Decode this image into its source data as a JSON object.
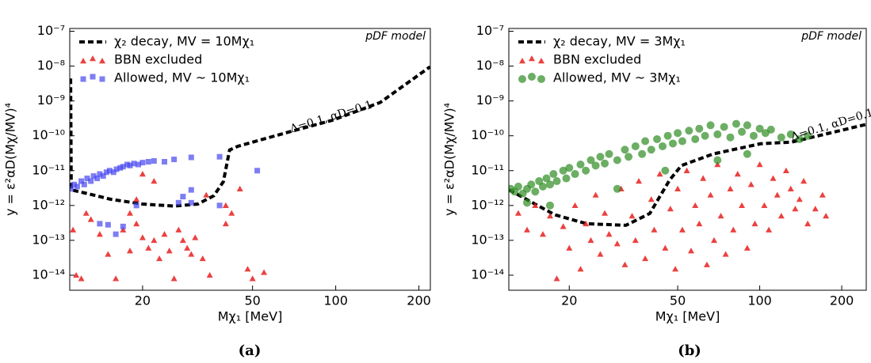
{
  "chart_data": [
    {
      "type": "scatter",
      "caption": "(a)",
      "corner_text": "pDF model",
      "annotation": "Δ=0.1, αD=0.1",
      "x_label": "Mχ₁ [MeV]",
      "y_label": "y = ε²αD(Mχ/MV)⁴",
      "log_x": true,
      "log_y": true,
      "legend": "upper left",
      "xlim": [
        10.9,
        220
      ],
      "ylim": [
        3.7e-15,
        1.2e-07
      ],
      "xticks": [
        20,
        50,
        100,
        200
      ],
      "yticks": [
        {
          "value": 1e-07,
          "label": "10⁻⁷"
        },
        {
          "value": 1e-08,
          "label": "10⁻⁸"
        },
        {
          "value": 1e-09,
          "label": "10⁻⁹"
        },
        {
          "value": 1e-10,
          "label": "10⁻¹⁰"
        },
        {
          "value": 1e-11,
          "label": "10⁻¹¹"
        },
        {
          "value": 1e-12,
          "label": "10⁻¹²"
        },
        {
          "value": 1e-13,
          "label": "10⁻¹³"
        },
        {
          "value": 1e-14,
          "label": "10⁻¹⁴"
        }
      ],
      "series": [
        {
          "name": "χ₂ decay, MV = 10Mχ₁",
          "color": "#000000",
          "kind": "line",
          "x": [
            10.98,
            11.04,
            12.6,
            15.4,
            20,
            26.0,
            31.7,
            36.2,
            39.2,
            41.3,
            44.2,
            65.6,
            97.4,
            144.8,
            219.4
          ],
          "values": [
            4.4e-09,
            2.8e-12,
            2.2e-12,
            1.5e-12,
            1.1e-12,
            9.6e-13,
            1.1e-12,
            1.9e-12,
            4.8e-12,
            3.9e-11,
            5e-11,
            1.2e-10,
            2.8e-10,
            9e-10,
            9.5e-09
          ]
        },
        {
          "name": "BBN excluded",
          "color": "#e8201f",
          "kind": "triangle",
          "x": [
            11.2,
            11.5,
            12.5,
            13,
            12,
            14,
            15,
            16,
            17,
            18,
            19,
            20,
            21,
            22,
            23,
            24,
            25,
            26,
            27,
            28,
            29,
            30,
            31,
            33,
            35,
            34,
            40,
            40,
            42,
            45,
            48,
            50,
            55,
            20,
            18,
            22,
            19
          ],
          "values": [
            2e-13,
            1e-14,
            6e-13,
            4e-13,
            8e-15,
            1.5e-13,
            4e-14,
            8e-15,
            2e-13,
            5e-14,
            3e-13,
            1.2e-13,
            6e-14,
            1e-13,
            3e-14,
            1.5e-13,
            5e-14,
            8e-15,
            2e-13,
            1e-13,
            6e-14,
            4e-14,
            1.2e-13,
            3e-14,
            1e-14,
            2e-12,
            3e-13,
            1e-12,
            6e-13,
            3e-12,
            1.5e-14,
            8e-15,
            1.2e-14,
            8e-12,
            6e-13,
            5e-12,
            1.5e-12
          ]
        },
        {
          "name": "Allowed, MV ~ 10Mχ₁",
          "color": "#4646f0",
          "kind": "square",
          "x": [
            11,
            11.3,
            11.6,
            12,
            12.3,
            12.6,
            13,
            13.3,
            13.7,
            14,
            14.4,
            14.8,
            15.2,
            15.7,
            16.1,
            16.6,
            17,
            17.6,
            18,
            18.6,
            19.3,
            20,
            21,
            22,
            24,
            26,
            30,
            30,
            28,
            27,
            15,
            16,
            14,
            17,
            19,
            38,
            38,
            52,
            30
          ],
          "values": [
            3e-12,
            4e-12,
            3.5e-12,
            5e-12,
            4e-12,
            6e-12,
            5e-12,
            7e-12,
            6e-12,
            8e-12,
            7e-12,
            9e-12,
            1e-11,
            9e-12,
            1.1e-11,
            1.2e-11,
            1.3e-11,
            1.5e-11,
            1.4e-11,
            1.6e-11,
            1.5e-11,
            1.7e-11,
            1.8e-11,
            1.9e-11,
            1.8e-11,
            2.1e-11,
            2.4e-11,
            2.8e-12,
            1.8e-12,
            1.2e-12,
            2.8e-13,
            1.5e-13,
            3e-13,
            2.5e-13,
            1e-12,
            2.5e-11,
            1e-12,
            1e-11,
            1.2e-12
          ]
        }
      ]
    },
    {
      "type": "scatter",
      "caption": "(b)",
      "corner_text": "pDF model",
      "annotation": "Δ=0.1, αD=0.1",
      "x_label": "Mχ₁ [MeV]",
      "y_label": "y = ε²αD(Mχ/MV)⁴",
      "log_x": true,
      "log_y": true,
      "legend": "upper left",
      "xlim": [
        12.0,
        246
      ],
      "ylim": [
        3.7e-15,
        1.2e-07
      ],
      "xticks": [
        20,
        50,
        100,
        200
      ],
      "yticks": [
        {
          "value": 1e-07,
          "label": "10⁻⁷"
        },
        {
          "value": 1e-08,
          "label": "10⁻⁸"
        },
        {
          "value": 1e-09,
          "label": "10⁻⁹"
        },
        {
          "value": 1e-10,
          "label": "10⁻¹⁰"
        },
        {
          "value": 1e-11,
          "label": "10⁻¹¹"
        },
        {
          "value": 1e-12,
          "label": "10⁻¹²"
        },
        {
          "value": 1e-13,
          "label": "10⁻¹³"
        },
        {
          "value": 1e-14,
          "label": "10⁻¹⁴"
        }
      ],
      "series": [
        {
          "name": "χ₂ decay, MV = 3Mχ₁",
          "color": "#000000",
          "kind": "line",
          "x": [
            12.04,
            17.7,
            23.2,
            32.3,
            39.5,
            46.7,
            51.6,
            67.4,
            100.6,
            131.4,
            244.3
          ],
          "values": [
            2.8e-12,
            5.4e-13,
            3e-13,
            2.7e-13,
            5.9e-13,
            5.4e-12,
            1.4e-11,
            3e-11,
            5.9e-11,
            6.6e-11,
            2.1e-10
          ]
        },
        {
          "name": "BBN excluded",
          "color": "#e8201f",
          "kind": "triangle",
          "x": [
            13,
            14,
            15,
            16,
            17,
            18,
            19,
            20,
            21,
            22,
            23,
            24,
            25,
            26,
            27,
            28,
            30,
            31,
            32,
            34,
            35,
            36,
            38,
            40,
            41,
            43,
            45,
            47,
            49,
            50,
            52,
            54,
            56,
            58,
            60,
            62,
            64,
            66,
            68,
            70,
            72,
            75,
            78,
            80,
            83,
            86,
            90,
            93,
            96,
            100,
            104,
            108,
            112,
            116,
            120,
            125,
            130,
            135,
            140,
            145,
            150,
            160,
            170,
            175
          ],
          "values": [
            6e-13,
            2e-13,
            1e-12,
            1.5e-13,
            5e-13,
            8e-15,
            2.5e-13,
            6e-14,
            1e-12,
            1.5e-14,
            3e-13,
            1e-13,
            2e-12,
            4e-14,
            6e-13,
            1.5e-13,
            8e-14,
            3e-12,
            2e-14,
            5e-13,
            1e-13,
            5e-12,
            3e-14,
            1.5e-12,
            2e-13,
            8e-12,
            6e-14,
            8e-13,
            1.5e-14,
            3e-12,
            2e-13,
            1e-11,
            5e-14,
            1e-12,
            3e-13,
            6e-12,
            2e-14,
            2e-12,
            1e-13,
            1.5e-11,
            5e-13,
            4e-14,
            3e-12,
            2e-13,
            8e-12,
            1e-12,
            6e-14,
            4e-12,
            3e-13,
            1.5e-11,
            1e-12,
            2e-13,
            6e-12,
            2e-12,
            5e-13,
            1e-11,
            3e-12,
            8e-13,
            1.5e-12,
            5e-12,
            3e-13,
            8e-13,
            2e-12,
            5e-13
          ]
        },
        {
          "name": "Allowed, MV ~ 3Mχ₁",
          "color": "#2e8b22",
          "kind": "circle",
          "x": [
            12.2,
            12.6,
            13,
            13.5,
            14,
            14.5,
            15,
            15.5,
            16,
            16.5,
            17,
            17.5,
            18,
            19,
            19.5,
            20,
            21,
            22,
            23,
            24,
            25,
            26,
            27,
            28,
            30,
            32,
            33,
            35,
            37,
            38,
            40,
            42,
            44,
            46,
            48,
            50,
            52,
            55,
            58,
            60,
            63,
            66,
            70,
            74,
            78,
            82,
            86,
            90,
            95,
            100,
            105,
            110,
            120,
            130,
            140,
            150,
            17,
            14,
            30,
            45,
            70,
            90
          ],
          "values": [
            3e-12,
            2.5e-12,
            3.5e-12,
            2.2e-12,
            3e-12,
            4e-12,
            2.5e-12,
            5e-12,
            3.5e-12,
            6e-12,
            4e-12,
            8e-12,
            5e-12,
            1e-11,
            6e-12,
            1.2e-11,
            8e-12,
            1.5e-11,
            1e-11,
            2e-11,
            1.4e-11,
            2.5e-11,
            1.6e-11,
            3e-11,
            2e-11,
            4e-11,
            2.5e-11,
            5e-11,
            3e-11,
            7e-11,
            4e-11,
            8e-11,
            5e-11,
            1e-10,
            6e-11,
            1.2e-10,
            7e-11,
            1.4e-10,
            8e-11,
            1.6e-10,
            1e-10,
            2e-10,
            1.1e-10,
            1.8e-10,
            9e-11,
            2.2e-10,
            1.3e-10,
            2e-10,
            1e-10,
            1.6e-10,
            1.2e-10,
            1.5e-10,
            9e-11,
            1.1e-10,
            8e-11,
            1e-10,
            1e-12,
            1.2e-12,
            3e-12,
            1e-11,
            2e-11,
            3e-11
          ]
        }
      ]
    }
  ]
}
